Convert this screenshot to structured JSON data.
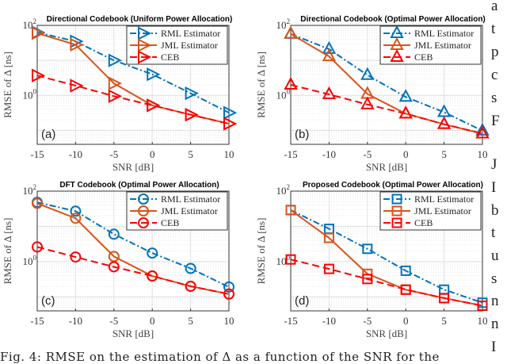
{
  "chart_data": [
    {
      "type": "line",
      "panel_label": "(a)",
      "title": "Directional Codebook (Uniform Power Allocation)",
      "marker": "triangle-right",
      "xlabel": "SNR [dB]",
      "ylabel": "RMSE of Δ [ns]",
      "yscale": "log",
      "ylim": [
        0.04,
        100
      ],
      "xlim": [
        -15,
        10
      ],
      "x": [
        -15,
        -10,
        -5,
        0,
        5,
        10
      ],
      "xticks": [
        "-15",
        "-10",
        "-5",
        "0",
        "5",
        "10"
      ],
      "yticks": [
        {
          "base": "10",
          "exp": "2",
          "value": 100
        },
        {
          "base": "10",
          "exp": "0",
          "value": 1
        }
      ],
      "grid": true,
      "legend": "top-right",
      "series": [
        {
          "name": "RML Estimator",
          "color": "#0072BD",
          "style": "dash-dot",
          "values": [
            63,
            35,
            10,
            4,
            1.15,
            0.32
          ]
        },
        {
          "name": "JML Estimator",
          "color": "#D95319",
          "style": "solid",
          "values": [
            60,
            28,
            2.2,
            0.52,
            0.28,
            0.155
          ]
        },
        {
          "name": "CEB",
          "color": "#FF0000",
          "style": "dashed",
          "values": [
            3.7,
            1.9,
            0.95,
            0.52,
            0.28,
            0.155
          ]
        }
      ]
    },
    {
      "type": "line",
      "panel_label": "(b)",
      "title": "Directional Codebook (Optimal Power Allocation)",
      "marker": "triangle-up",
      "xlabel": "SNR [dB]",
      "ylabel": "RMSE of Δ [ns]",
      "yscale": "log",
      "ylim": [
        0.04,
        100
      ],
      "xlim": [
        -15,
        10
      ],
      "x": [
        -15,
        -10,
        -5,
        0,
        5,
        10
      ],
      "xticks": [
        "-15",
        "-10",
        "-5",
        "0",
        "5",
        "10"
      ],
      "yticks": [
        {
          "base": "10",
          "exp": "2",
          "value": 100
        },
        {
          "base": "10",
          "exp": "0",
          "value": 1
        }
      ],
      "grid": true,
      "legend": "top-right",
      "series": [
        {
          "name": "RML Estimator",
          "color": "#0072BD",
          "style": "dash-dot",
          "values": [
            57,
            21,
            3.8,
            0.9,
            0.33,
            0.098
          ]
        },
        {
          "name": "JML Estimator",
          "color": "#D95319",
          "style": "solid",
          "values": [
            57,
            13,
            1.1,
            0.3,
            0.15,
            0.081
          ]
        },
        {
          "name": "CEB",
          "color": "#FF0000",
          "style": "dashed",
          "values": [
            2.0,
            1.07,
            0.55,
            0.3,
            0.15,
            0.081
          ]
        }
      ]
    },
    {
      "type": "line",
      "panel_label": "(c)",
      "title": "DFT Codebook (Optimal Power Allocation)",
      "marker": "circle",
      "xlabel": "SNR [dB]",
      "ylabel": "RMSE of Δ [ns]",
      "yscale": "log",
      "ylim": [
        0.04,
        100
      ],
      "xlim": [
        -15,
        10
      ],
      "x": [
        -15,
        -10,
        -5,
        0,
        5,
        10
      ],
      "xticks": [
        "-15",
        "-10",
        "-5",
        "0",
        "5",
        "10"
      ],
      "yticks": [
        {
          "base": "10",
          "exp": "2",
          "value": 100
        },
        {
          "base": "10",
          "exp": "0",
          "value": 1
        }
      ],
      "grid": true,
      "legend": "top-right",
      "series": [
        {
          "name": "RML Estimator",
          "color": "#0072BD",
          "style": "dash-dot",
          "values": [
            48,
            27,
            6,
            1.75,
            0.64,
            0.19
          ]
        },
        {
          "name": "JML Estimator",
          "color": "#D95319",
          "style": "solid",
          "values": [
            45,
            17,
            1.4,
            0.39,
            0.2,
            0.12
          ]
        },
        {
          "name": "CEB",
          "color": "#FF0000",
          "style": "dashed",
          "values": [
            2.6,
            1.35,
            0.71,
            0.39,
            0.2,
            0.12
          ]
        }
      ]
    },
    {
      "type": "line",
      "panel_label": "(d)",
      "title": "Proposed Codebook (Optimal Power Allocation)",
      "marker": "square",
      "xlabel": "SNR [dB]",
      "ylabel": "RMSE of Δ [ns]",
      "yscale": "log",
      "ylim": [
        0.04,
        100
      ],
      "xlim": [
        -15,
        10
      ],
      "x": [
        -15,
        -10,
        -5,
        0,
        5,
        10
      ],
      "xticks": [
        "-15",
        "-10",
        "-5",
        "0",
        "5",
        "10"
      ],
      "yticks": [
        {
          "base": "10",
          "exp": "2",
          "value": 100
        },
        {
          "base": "10",
          "exp": "0",
          "value": 1
        }
      ],
      "grid": true,
      "legend": "top-right",
      "series": [
        {
          "name": "RML Estimator",
          "color": "#0072BD",
          "style": "dash-dot",
          "values": [
            29,
            8.5,
            2.3,
            0.55,
            0.16,
            0.068
          ]
        },
        {
          "name": "JML Estimator",
          "color": "#D95319",
          "style": "solid",
          "values": [
            29,
            4.7,
            0.45,
            0.16,
            0.092,
            0.056
          ]
        },
        {
          "name": "CEB",
          "color": "#FF0000",
          "style": "dashed",
          "values": [
            1.15,
            0.62,
            0.32,
            0.16,
            0.092,
            0.056
          ]
        }
      ]
    }
  ],
  "caption": "Fig. 4: RMSE on the estimation of Δ as a function of the SNR for the",
  "side_text": [
    "a",
    "t",
    "p",
    "c",
    "s",
    "F",
    "J",
    "I",
    "b",
    "t",
    "u",
    "s",
    "n",
    "n",
    "I"
  ]
}
